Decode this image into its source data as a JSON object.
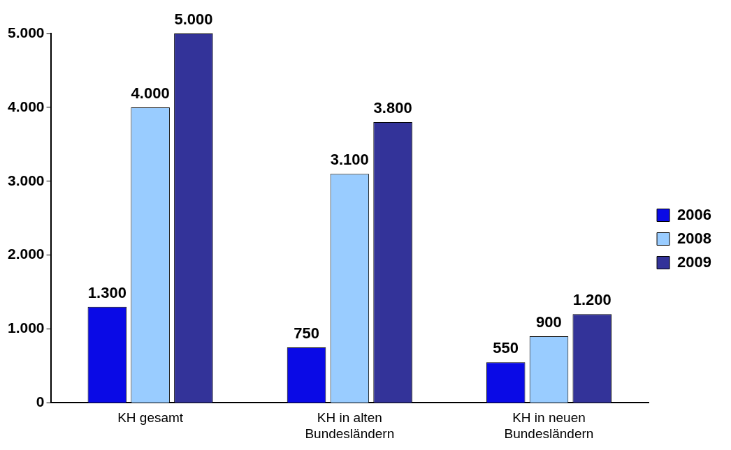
{
  "chart_data": {
    "type": "bar",
    "categories": [
      "KH gesamt",
      "KH in alten Bundesländern",
      "KH in neuen Bundesländern"
    ],
    "series": [
      {
        "name": "2006",
        "color": "#0a0ae6",
        "values": [
          1300,
          750,
          550
        ],
        "value_labels": [
          "1.300",
          "750",
          "550"
        ]
      },
      {
        "name": "2008",
        "color": "#99ccff",
        "values": [
          4000,
          3100,
          900
        ],
        "value_labels": [
          "4.000",
          "3.100",
          "900"
        ]
      },
      {
        "name": "2009",
        "color": "#333399",
        "values": [
          5000,
          3800,
          1200
        ],
        "value_labels": [
          "5.000",
          "3.800",
          "1.200"
        ]
      }
    ],
    "ylim": [
      0,
      5000
    ],
    "yticks": [
      {
        "value": 0,
        "label": "0"
      },
      {
        "value": 1000,
        "label": "1.000"
      },
      {
        "value": 2000,
        "label": "2.000"
      },
      {
        "value": 3000,
        "label": "3.000"
      },
      {
        "value": 4000,
        "label": "4.000"
      },
      {
        "value": 5000,
        "label": "5.000"
      }
    ],
    "grid": false,
    "legend": "right"
  }
}
